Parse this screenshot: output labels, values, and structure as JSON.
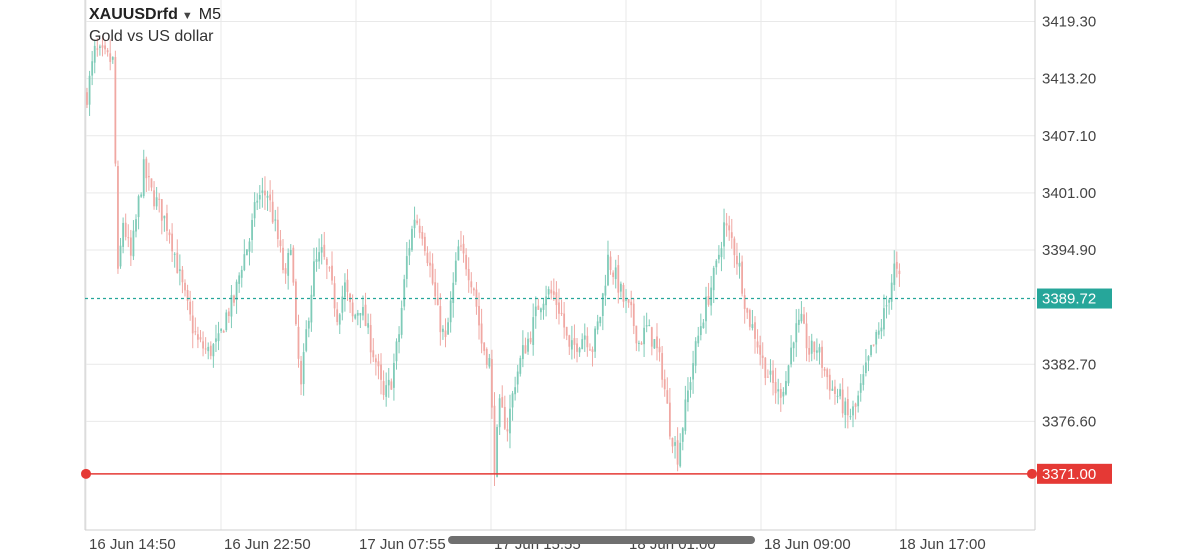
{
  "header": {
    "symbol": "XAUUSDrfd",
    "dropdown_icon": "caret-down-icon",
    "timeframe": "M5",
    "description": "Gold vs US dollar"
  },
  "colors": {
    "up": "#7fcbb8",
    "down": "#f0a8a3",
    "current_price": "#26a69a",
    "alert_line": "#e53935",
    "grid": "#e9e9e9",
    "axis": "#cfcfcf"
  },
  "chart_data": {
    "type": "candlestick",
    "y_ticks": [
      "3419.30",
      "3413.20",
      "3407.10",
      "3401.00",
      "3394.90",
      "3382.70",
      "3376.60"
    ],
    "ylim": [
      3365.0,
      3421.6
    ],
    "x_ticks": [
      "16 Jun 14:50",
      "16 Jun 22:50",
      "17 Jun 07:55",
      "17 Jun 15:55",
      "18 Jun 01:00",
      "18 Jun 09:00",
      "18 Jun 17:00"
    ],
    "current_price": {
      "value": 3389.72,
      "label": "3389.72"
    },
    "alert_line": {
      "value": 3371.0,
      "label": "3371.00"
    },
    "path_points": [
      [
        0,
        3411.5
      ],
      [
        3,
        3416.0
      ],
      [
        10,
        3415.0
      ],
      [
        11,
        3404.0
      ],
      [
        12,
        3392.0
      ],
      [
        14,
        3398.0
      ],
      [
        17,
        3394.0
      ],
      [
        20,
        3400.0
      ],
      [
        22,
        3403.5
      ],
      [
        25,
        3401.0
      ],
      [
        28,
        3399.5
      ],
      [
        32,
        3397.0
      ],
      [
        36,
        3392.0
      ],
      [
        40,
        3387.5
      ],
      [
        43,
        3385.0
      ],
      [
        47,
        3384.0
      ],
      [
        51,
        3385.0
      ],
      [
        54,
        3388.0
      ],
      [
        57,
        3389.5
      ],
      [
        60,
        3393.5
      ],
      [
        63,
        3396.0
      ],
      [
        66,
        3400.5
      ],
      [
        70,
        3401.0
      ],
      [
        74,
        3396.0
      ],
      [
        77,
        3391.5
      ],
      [
        79,
        3396.0
      ],
      [
        81,
        3386.0
      ],
      [
        83,
        3380.0
      ],
      [
        85,
        3386.0
      ],
      [
        88,
        3393.0
      ],
      [
        91,
        3394.5
      ],
      [
        94,
        3392.0
      ],
      [
        97,
        3388.0
      ],
      [
        100,
        3391.0
      ],
      [
        103,
        3387.5
      ],
      [
        106,
        3389.0
      ],
      [
        109,
        3386.0
      ],
      [
        112,
        3383.0
      ],
      [
        115,
        3379.0
      ],
      [
        118,
        3381.0
      ],
      [
        121,
        3386.0
      ],
      [
        124,
        3394.0
      ],
      [
        127,
        3398.5
      ],
      [
        130,
        3397.0
      ],
      [
        133,
        3393.0
      ],
      [
        136,
        3388.0
      ],
      [
        139,
        3385.0
      ],
      [
        142,
        3391.0
      ],
      [
        144,
        3395.0
      ],
      [
        147,
        3393.5
      ],
      [
        150,
        3391.0
      ],
      [
        153,
        3385.0
      ],
      [
        156,
        3383.0
      ],
      [
        158,
        3372.0
      ],
      [
        160,
        3378.0
      ],
      [
        163,
        3376.0
      ],
      [
        166,
        3381.0
      ],
      [
        169,
        3384.0
      ],
      [
        172,
        3386.0
      ],
      [
        175,
        3389.0
      ],
      [
        178,
        3390.5
      ],
      [
        181,
        3390.0
      ],
      [
        184,
        3388.0
      ],
      [
        187,
        3384.0
      ],
      [
        190,
        3385.0
      ],
      [
        193,
        3386.0
      ],
      [
        196,
        3384.5
      ],
      [
        199,
        3388.0
      ],
      [
        202,
        3394.0
      ],
      [
        205,
        3392.0
      ],
      [
        208,
        3389.5
      ],
      [
        211,
        3388.0
      ],
      [
        214,
        3385.0
      ],
      [
        217,
        3386.5
      ],
      [
        220,
        3385.0
      ],
      [
        223,
        3382.0
      ],
      [
        226,
        3376.0
      ],
      [
        229,
        3373.0
      ],
      [
        232,
        3378.0
      ],
      [
        235,
        3383.0
      ],
      [
        238,
        3387.0
      ],
      [
        241,
        3390.0
      ],
      [
        244,
        3393.0
      ],
      [
        247,
        3397.5
      ],
      [
        250,
        3396.0
      ],
      [
        253,
        3393.0
      ],
      [
        256,
        3388.0
      ],
      [
        259,
        3386.0
      ],
      [
        262,
        3383.0
      ],
      [
        265,
        3381.0
      ],
      [
        268,
        3379.5
      ],
      [
        271,
        3381.0
      ],
      [
        274,
        3386.0
      ],
      [
        277,
        3387.0
      ],
      [
        280,
        3384.0
      ],
      [
        283,
        3384.5
      ],
      [
        286,
        3382.0
      ],
      [
        289,
        3380.0
      ],
      [
        292,
        3379.0
      ],
      [
        295,
        3377.0
      ],
      [
        298,
        3378.0
      ],
      [
        301,
        3381.0
      ],
      [
        304,
        3384.0
      ],
      [
        307,
        3386.0
      ],
      [
        310,
        3389.0
      ],
      [
        313,
        3393.0
      ],
      [
        315,
        3391.5
      ]
    ],
    "n_candles": 316
  }
}
